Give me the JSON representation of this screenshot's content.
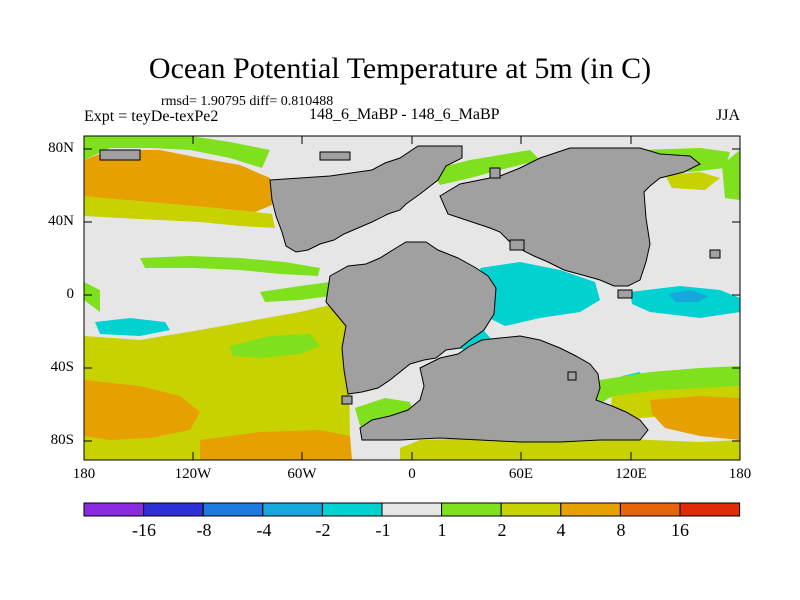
{
  "title": "Ocean Potential Temperature at 5m (in C)",
  "stats": "rmsd= 1.90795 diff= 0.810488",
  "expt": "Expt = teyDe-texPe2",
  "comparison": "148_6_MaBP - 148_6_MaBP",
  "season": "JJA",
  "axes": {
    "x_labels": [
      "180",
      "120W",
      "60W",
      "0",
      "60E",
      "120E",
      "180"
    ],
    "y_labels": [
      "80N",
      "40N",
      "0",
      "40S",
      "80S"
    ]
  },
  "colorbar": {
    "labels": [
      "-16",
      "-8",
      "-4",
      "-2",
      "-1",
      "1",
      "2",
      "4",
      "8",
      "16"
    ],
    "colors": [
      "#8a2be2",
      "#2f2fd8",
      "#1e78e0",
      "#16a8dc",
      "#00d2d2",
      "#e6e6e6",
      "#7fe01e",
      "#c8d200",
      "#e6a000",
      "#e8640a",
      "#e02a0a"
    ]
  },
  "palette": {
    "land": "#a0a0a0",
    "neutral": "#e6e6e6",
    "plus2": "#7fe01e",
    "plus4": "#c8d200",
    "plus8": "#e6a000",
    "minus1": "#00d2d2",
    "minus2": "#16a8dc"
  }
}
